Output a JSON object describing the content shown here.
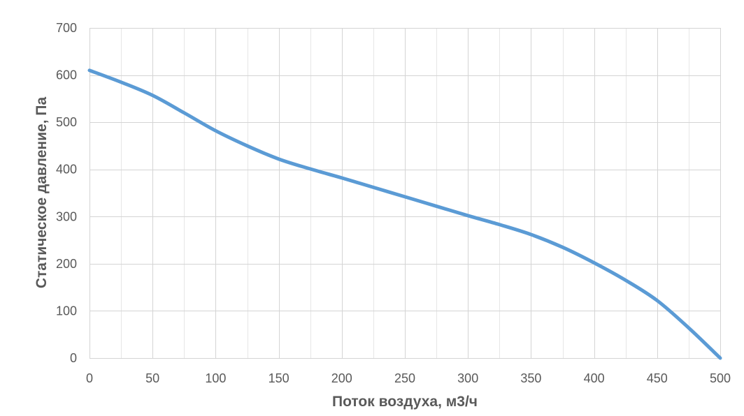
{
  "chart_data": {
    "type": "line",
    "xlabel": "Поток воздуха, м3/ч",
    "ylabel": "Статическое давление, Па",
    "xlim": [
      0,
      500
    ],
    "ylim": [
      0,
      700
    ],
    "x_ticks": [
      0,
      50,
      100,
      150,
      200,
      250,
      300,
      350,
      400,
      450,
      500
    ],
    "y_ticks": [
      0,
      100,
      200,
      300,
      400,
      500,
      600,
      700
    ],
    "x_minor_step": 25,
    "grid": true,
    "legend": "none",
    "series": [
      {
        "color": "#5B9BD5",
        "x": [
          0,
          25,
          50,
          75,
          100,
          125,
          150,
          175,
          200,
          225,
          250,
          275,
          300,
          325,
          350,
          375,
          400,
          425,
          450,
          475,
          500
        ],
        "y": [
          610,
          585,
          557,
          520,
          482,
          450,
          422,
          401,
          382,
          362,
          342,
          322,
          302,
          283,
          262,
          235,
          202,
          165,
          122,
          64,
          0
        ]
      }
    ]
  }
}
